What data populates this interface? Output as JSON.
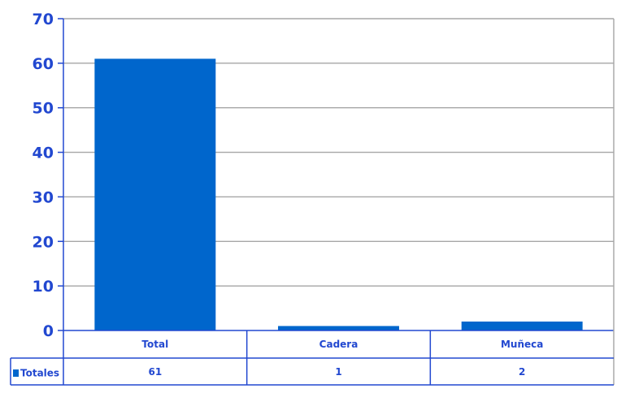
{
  "chart_data": {
    "type": "bar",
    "categories": [
      "Total",
      "Cadera",
      "Muñeca"
    ],
    "series": [
      {
        "name": "Totales",
        "values": [
          61,
          1,
          2
        ],
        "labels": [
          "61",
          "1",
          "2"
        ],
        "color": "#0066CC"
      }
    ],
    "ylim": [
      0,
      70
    ],
    "yticks": [
      "0",
      "10",
      "20",
      "30",
      "40",
      "50",
      "60",
      "70"
    ],
    "grid": true,
    "legend": "data table",
    "colors": {
      "text": "#2248D0",
      "grid": "#A6A6A6",
      "axis": "#2248D0"
    }
  }
}
